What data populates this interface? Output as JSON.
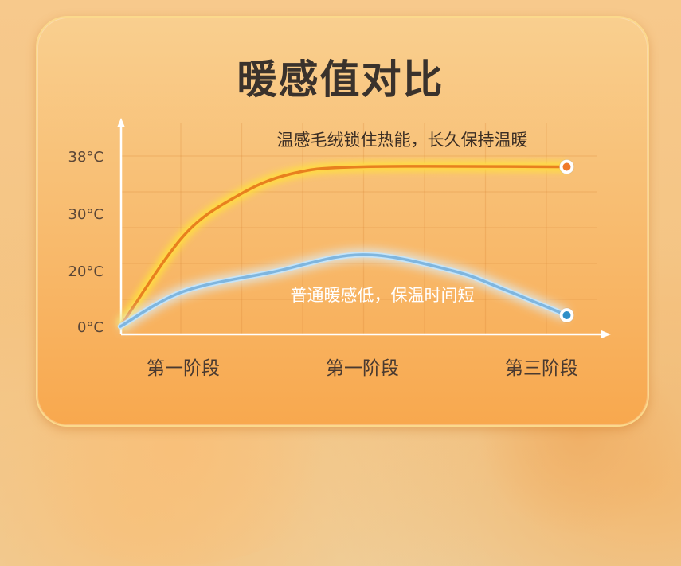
{
  "chart_data": {
    "type": "line",
    "title": "暖感值对比",
    "xlabel": "",
    "ylabel": "",
    "x_tick_labels": [
      "第一阶段",
      "第一阶段",
      "第三阶段"
    ],
    "y_tick_labels": [
      "0°C",
      "20°C",
      "30°C",
      "38°C"
    ],
    "y_tick_values": [
      0,
      20,
      30,
      38
    ],
    "grid": true,
    "series": [
      {
        "annotation": "温感毛绒锁住热能，长久保持温暖",
        "color": "#f0962a",
        "points": [
          [
            0.65,
            0
          ],
          [
            1,
            26
          ],
          [
            1.3,
            32.4
          ],
          [
            1.6,
            35.5
          ],
          [
            2,
            36.5
          ],
          [
            3.14,
            36.5
          ]
        ]
      },
      {
        "annotation": "普通暖感低，保温时间短",
        "color": "#7fb6df",
        "points": [
          [
            0.65,
            0
          ],
          [
            1,
            12.5
          ],
          [
            1.5,
            19.5
          ],
          [
            2,
            22.8
          ],
          [
            2.5,
            20
          ],
          [
            2.8,
            13
          ],
          [
            3.14,
            4
          ]
        ]
      }
    ]
  }
}
